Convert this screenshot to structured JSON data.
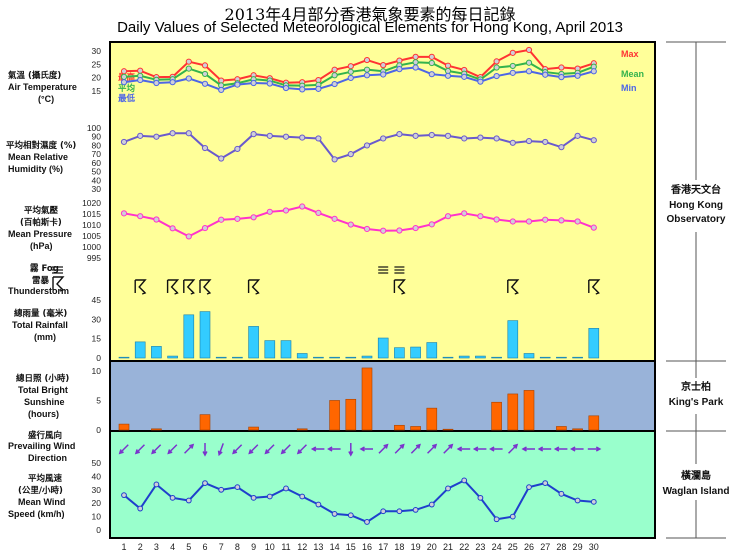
{
  "page": {
    "title_zh": "2013年4月部分香港氣象要素的每日記錄",
    "title_en": "Daily Values of Selected Meteorological Elements for Hong Kong, April 2013"
  },
  "stations": [
    {
      "name_zh": "香港天文台",
      "name_en_1": "Hong Kong",
      "name_en_2": "Observatory"
    },
    {
      "name_zh": "京士柏",
      "name_en_1": "King's Park"
    },
    {
      "name_zh": "橫瀾島",
      "name_en_1": "Waglan Island"
    }
  ],
  "colors": {
    "panel_observatory": "#ffff99",
    "panel_kingspark": "#99b3d9",
    "panel_waglan": "#99ffcc",
    "max_line": "#ff3333",
    "mean_line": "#33b34d",
    "min_line": "#4d66e6",
    "humidity_line": "#6a5acd",
    "pressure_line": "#ff33cc",
    "rain_bar": "#33ccff",
    "sunshine_bar": "#ff6600",
    "wind_line": "#1f3fcc",
    "arrow": "#7a33cc"
  },
  "chart_data": [
    {
      "type": "line",
      "label_zh": "氣溫 (攝氏度)",
      "label_en_1": "Air Temperature",
      "label_en_2": "(°C)",
      "x": [
        1,
        2,
        3,
        4,
        5,
        6,
        7,
        8,
        9,
        10,
        11,
        12,
        13,
        14,
        15,
        16,
        17,
        18,
        19,
        20,
        21,
        22,
        23,
        24,
        25,
        26,
        27,
        28,
        29,
        30
      ],
      "ylim": [
        15,
        30
      ],
      "yticks": [
        15,
        20,
        25,
        30
      ],
      "series": [
        {
          "name": "Max",
          "name_zh": "最高",
          "values": [
            22.4,
            22.6,
            20.2,
            20.3,
            26.0,
            24.6,
            18.9,
            19.4,
            20.9,
            19.8,
            18.1,
            18.3,
            19.1,
            23.0,
            24.3,
            26.6,
            24.7,
            26.4,
            27.8,
            27.8,
            24.5,
            22.9,
            20.2,
            26.1,
            29.3,
            30.4,
            23.2,
            23.8,
            23.4,
            25.4
          ]
        },
        {
          "name": "Mean",
          "name_zh": "平均",
          "values": [
            20.3,
            20.7,
            19.2,
            19.4,
            23.4,
            21.4,
            17.1,
            17.9,
            19.4,
            18.9,
            17.1,
            17.0,
            17.3,
            20.9,
            22.2,
            23.0,
            22.4,
            24.6,
            25.8,
            25.5,
            22.5,
            21.5,
            19.3,
            23.8,
            24.4,
            25.6,
            22.1,
            21.4,
            21.8,
            24.1
          ]
        },
        {
          "name": "Min",
          "name_zh": "最低",
          "values": [
            18.3,
            19.1,
            18.0,
            18.3,
            19.7,
            17.7,
            15.4,
            17.4,
            18.0,
            17.8,
            16.1,
            15.6,
            15.8,
            17.6,
            19.9,
            20.9,
            21.2,
            23.2,
            23.8,
            21.3,
            20.7,
            20.3,
            18.5,
            20.6,
            21.8,
            22.4,
            21.1,
            20.2,
            20.7,
            22.4
          ]
        }
      ]
    },
    {
      "type": "line",
      "label_zh": "平均相對濕度 (%)",
      "label_en_1": "Mean Relative",
      "label_en_2": "Humidity (%)",
      "x": [
        1,
        2,
        3,
        4,
        5,
        6,
        7,
        8,
        9,
        10,
        11,
        12,
        13,
        14,
        15,
        16,
        17,
        18,
        19,
        20,
        21,
        22,
        23,
        24,
        25,
        26,
        27,
        28,
        29,
        30
      ],
      "ylim": [
        30,
        100
      ],
      "yticks": [
        30,
        40,
        50,
        60,
        70,
        80,
        90,
        100
      ],
      "series": [
        {
          "name": "Mean Relative Humidity",
          "values": [
            84,
            91,
            90,
            94,
            94,
            77,
            65,
            76,
            93,
            91,
            90,
            89,
            88,
            64,
            70,
            80,
            88,
            93,
            91,
            92,
            91,
            88,
            89,
            88,
            83,
            85,
            84,
            78,
            91,
            86
          ]
        }
      ]
    },
    {
      "type": "line",
      "label_zh": "平均氣壓",
      "label_zh_2": "(百帕斯卡)",
      "label_en_1": "Mean Pressure",
      "label_en_2": "(hPa)",
      "x": [
        1,
        2,
        3,
        4,
        5,
        6,
        7,
        8,
        9,
        10,
        11,
        12,
        13,
        14,
        15,
        16,
        17,
        18,
        19,
        20,
        21,
        22,
        23,
        24,
        25,
        26,
        27,
        28,
        29,
        30
      ],
      "ylim": [
        995,
        1020
      ],
      "yticks": [
        995,
        1000,
        1005,
        1010,
        1015,
        1020
      ],
      "series": [
        {
          "name": "Mean Pressure",
          "values": [
            1015.3,
            1014.0,
            1012.5,
            1008.5,
            1004.8,
            1008.6,
            1012.4,
            1012.8,
            1013.5,
            1016.0,
            1016.6,
            1018.4,
            1015.5,
            1012.8,
            1010.2,
            1008.2,
            1007.4,
            1007.5,
            1008.6,
            1010.3,
            1014.0,
            1015.3,
            1014.0,
            1012.5,
            1011.6,
            1011.6,
            1012.4,
            1012.1,
            1011.6,
            1008.8
          ]
        }
      ]
    },
    {
      "type": "symbols",
      "label_zh_1": "霧 Fog",
      "label_zh_2": "雷暴",
      "label_en": "Thunderstorm",
      "fog_days": [
        17,
        18
      ],
      "thunderstorm_days": [
        2,
        4,
        5,
        6,
        9,
        18,
        25,
        30
      ]
    },
    {
      "type": "bar",
      "label_zh": "總雨量 (毫米)",
      "label_en_1": "Total Rainfall",
      "label_en_2": "(mm)",
      "x": [
        1,
        2,
        3,
        4,
        5,
        6,
        7,
        8,
        9,
        10,
        11,
        12,
        13,
        14,
        15,
        16,
        17,
        18,
        19,
        20,
        21,
        22,
        23,
        24,
        25,
        26,
        27,
        28,
        29,
        30
      ],
      "ylim": [
        0,
        45
      ],
      "yticks": [
        0,
        15,
        30,
        45
      ],
      "series": [
        {
          "name": "Total Rainfall",
          "values": [
            0.5,
            12.5,
            9.0,
            1.5,
            33.5,
            36.0,
            0,
            0,
            24.5,
            13.5,
            13.5,
            3.5,
            0,
            0,
            0,
            1.5,
            15.5,
            8.0,
            8.5,
            12.0,
            0.5,
            1.5,
            1.5,
            0,
            29.0,
            3.5,
            0,
            0,
            0,
            23.0
          ]
        }
      ]
    },
    {
      "type": "bar",
      "label_zh": "總日照 (小時)",
      "label_en_1": "Total Bright",
      "label_en_2": "Sunshine",
      "label_en_3": "(hours)",
      "x": [
        1,
        2,
        3,
        4,
        5,
        6,
        7,
        8,
        9,
        10,
        11,
        12,
        13,
        14,
        15,
        16,
        17,
        18,
        19,
        20,
        21,
        22,
        23,
        24,
        25,
        26,
        27,
        28,
        29,
        30
      ],
      "ylim": [
        0,
        11
      ],
      "yticks": [
        0,
        5,
        10
      ],
      "series": [
        {
          "name": "Total Bright Sunshine",
          "values": [
            1.0,
            0,
            0.2,
            0,
            0,
            2.6,
            0,
            0,
            0.5,
            0,
            0,
            0.2,
            0,
            5.0,
            5.2,
            10.5,
            0,
            0.8,
            0.6,
            3.7,
            0.1,
            0,
            0,
            4.7,
            6.1,
            6.7,
            0,
            0.6,
            0.2,
            2.4
          ]
        }
      ]
    },
    {
      "type": "symbols",
      "label_zh": "盛行風向",
      "label_en_1": "Prevailing Wind",
      "label_en_2": "Direction",
      "directions_deg_toward": [
        225,
        225,
        225,
        225,
        45,
        180,
        200,
        225,
        225,
        225,
        225,
        225,
        270,
        270,
        180,
        270,
        45,
        45,
        45,
        45,
        45,
        270,
        270,
        270,
        45,
        270,
        270,
        270,
        270,
        90
      ]
    },
    {
      "type": "line",
      "label_zh": "平均風速",
      "label_zh_2": "(公里/小時)",
      "label_en_1": "Mean Wind",
      "label_en_2": "Speed (km/h)",
      "x": [
        1,
        2,
        3,
        4,
        5,
        6,
        7,
        8,
        9,
        10,
        11,
        12,
        13,
        14,
        15,
        16,
        17,
        18,
        19,
        20,
        21,
        22,
        23,
        24,
        25,
        26,
        27,
        28,
        29,
        30
      ],
      "ylim": [
        0,
        50
      ],
      "yticks": [
        0,
        10,
        20,
        30,
        40,
        50
      ],
      "series": [
        {
          "name": "Mean Wind Speed",
          "values": [
            26,
            16,
            34,
            24,
            22,
            35,
            30,
            32,
            24,
            25,
            31,
            25,
            19,
            12,
            11,
            6,
            14,
            14,
            15,
            19,
            31,
            37,
            24,
            8,
            10,
            32,
            35,
            27,
            22,
            21
          ]
        }
      ]
    }
  ],
  "legend": {
    "max": "Max",
    "mean": "Mean",
    "min": "Min"
  },
  "x_tick_labels": [
    "1",
    "2",
    "3",
    "4",
    "5",
    "6",
    "7",
    "8",
    "9",
    "10",
    "11",
    "12",
    "13",
    "14",
    "15",
    "16",
    "17",
    "18",
    "19",
    "20",
    "21",
    "22",
    "23",
    "24",
    "25",
    "26",
    "27",
    "28",
    "29",
    "30"
  ]
}
